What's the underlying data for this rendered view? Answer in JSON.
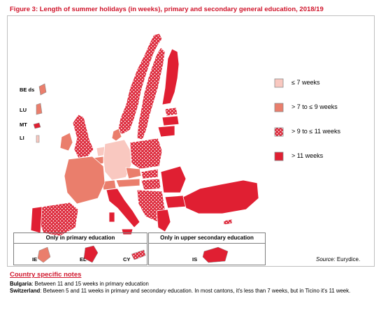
{
  "title": "Figure 3: Length of summer holidays (in weeks), primary and secondary general education, 2018/19",
  "colors": {
    "le7": "#f9c8c0",
    "7to9": "#ea7e6c",
    "9to11": "#dd2a3c",
    "gt11": "#e01f32",
    "border": "#ffffff"
  },
  "legend": [
    {
      "key": "le7",
      "label": "≤ 7 weeks",
      "pattern": false
    },
    {
      "key": "7to9",
      "label": "> 7 to ≤ 9 weeks",
      "pattern": false
    },
    {
      "key": "9to11",
      "label": "> 9 to ≤ 11 weeks",
      "pattern": true
    },
    {
      "key": "gt11",
      "label": "> 11 weeks",
      "pattern": false
    }
  ],
  "insets": [
    {
      "code": "BE ds",
      "category": "7to9"
    },
    {
      "code": "LU",
      "category": "7to9"
    },
    {
      "code": "MT",
      "category": "gt11"
    },
    {
      "code": "LI",
      "category": "le7"
    }
  ],
  "primary_box": {
    "heading": "Only in primary education",
    "countries": [
      {
        "code": "IE",
        "category": "7to9"
      },
      {
        "code": "EL",
        "category": "gt11"
      },
      {
        "code": "CY",
        "category": "9to11"
      }
    ]
  },
  "upper_box": {
    "heading": "Only in upper secondary education",
    "countries": [
      {
        "code": "IS",
        "category": "gt11"
      }
    ]
  },
  "source": {
    "label": "Source:",
    "value": "Eurydice."
  },
  "notes_heading": "Country specific notes",
  "notes": [
    {
      "country": "Bulgaria",
      "text": ": Between 11 and 15 weeks in primary education"
    },
    {
      "country": "Switzerland",
      "text": ": Between 5 and 11 weeks in primary and secondary education. In most cantons, it's less than 7 weeks, but in Ticino it's 11 week."
    }
  ]
}
